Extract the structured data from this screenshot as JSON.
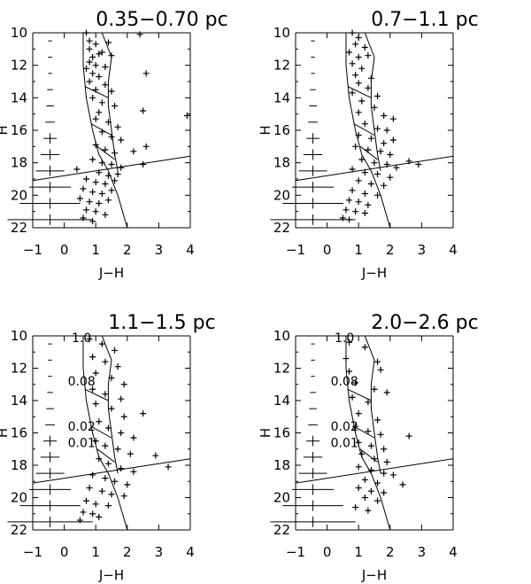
{
  "chart_data": [
    {
      "type": "scatter",
      "title": "0.35−0.70 pc",
      "xlabel": "J−H",
      "ylabel": "H",
      "xlim": [
        -1,
        4
      ],
      "ylim": [
        22,
        10
      ],
      "xticks": [
        "−1",
        "0",
        "1",
        "2",
        "3",
        "4"
      ],
      "yticks": [
        "10",
        "12",
        "14",
        "16",
        "18",
        "20",
        "22"
      ],
      "isochrone_labels": [],
      "points": [
        [
          0.7,
          10.0
        ],
        [
          2.4,
          10.1
        ],
        [
          0.8,
          10.5
        ],
        [
          1.0,
          10.7
        ],
        [
          1.4,
          10.6
        ],
        [
          0.8,
          11.0
        ],
        [
          1.1,
          11.3
        ],
        [
          0.9,
          11.5
        ],
        [
          1.2,
          11.2
        ],
        [
          1.5,
          11.4
        ],
        [
          0.8,
          11.8
        ],
        [
          1.0,
          12.0
        ],
        [
          0.7,
          12.2
        ],
        [
          1.3,
          12.1
        ],
        [
          0.9,
          12.5
        ],
        [
          1.1,
          12.7
        ],
        [
          2.6,
          12.5
        ],
        [
          0.8,
          13.0
        ],
        [
          1.3,
          13.2
        ],
        [
          1.0,
          13.5
        ],
        [
          1.5,
          13.6
        ],
        [
          0.9,
          14.0
        ],
        [
          1.2,
          14.3
        ],
        [
          1.6,
          14.5
        ],
        [
          1.1,
          14.9
        ],
        [
          2.5,
          14.8
        ],
        [
          3.9,
          15.1
        ],
        [
          1.0,
          15.3
        ],
        [
          1.4,
          15.5
        ],
        [
          1.7,
          15.8
        ],
        [
          1.2,
          16.1
        ],
        [
          1.5,
          16.4
        ],
        [
          1.8,
          16.6
        ],
        [
          2.6,
          17.0
        ],
        [
          1.0,
          16.9
        ],
        [
          1.3,
          17.2
        ],
        [
          1.6,
          17.4
        ],
        [
          2.2,
          17.3
        ],
        [
          0.9,
          17.8
        ],
        [
          1.2,
          18.0
        ],
        [
          1.5,
          18.1
        ],
        [
          1.8,
          18.3
        ],
        [
          2.5,
          18.1
        ],
        [
          0.4,
          18.4
        ],
        [
          1.1,
          18.6
        ],
        [
          1.4,
          18.8
        ],
        [
          1.7,
          18.7
        ],
        [
          0.7,
          19.0
        ],
        [
          1.0,
          19.2
        ],
        [
          1.3,
          19.3
        ],
        [
          1.6,
          19.1
        ],
        [
          0.6,
          19.6
        ],
        [
          0.9,
          19.8
        ],
        [
          1.2,
          19.9
        ],
        [
          1.5,
          19.7
        ],
        [
          0.5,
          20.2
        ],
        [
          0.8,
          20.4
        ],
        [
          1.1,
          20.5
        ],
        [
          1.4,
          20.3
        ],
        [
          0.7,
          20.9
        ],
        [
          1.0,
          21.0
        ],
        [
          1.3,
          21.2
        ],
        [
          0.6,
          21.4
        ],
        [
          0.9,
          21.6
        ]
      ],
      "error_bars_H": [
        10.5,
        11.5,
        12.5,
        13.5,
        14.5,
        15.5,
        16.5,
        17.5,
        18.5,
        19.5,
        20.5,
        21.5
      ],
      "error_bars_halfwidth": [
        0.02,
        0.02,
        0.02,
        0.03,
        0.04,
        0.05,
        0.07,
        0.1,
        0.15,
        0.22,
        0.32,
        0.45
      ]
    },
    {
      "type": "scatter",
      "title": "0.7−1.1 pc",
      "xlabel": "J−H",
      "ylabel": "H",
      "xlim": [
        -1,
        4
      ],
      "ylim": [
        22,
        10
      ],
      "xticks": [
        "−1",
        "0",
        "1",
        "2",
        "3",
        "4"
      ],
      "yticks": [
        "10",
        "12",
        "14",
        "16",
        "18",
        "20",
        "22"
      ],
      "isochrone_labels": [],
      "points": [
        [
          0.8,
          10.0
        ],
        [
          1.0,
          10.3
        ],
        [
          0.9,
          10.7
        ],
        [
          1.2,
          10.9
        ],
        [
          0.7,
          11.2
        ],
        [
          1.0,
          11.5
        ],
        [
          1.3,
          11.4
        ],
        [
          0.8,
          11.9
        ],
        [
          1.1,
          12.2
        ],
        [
          0.9,
          12.6
        ],
        [
          1.4,
          12.8
        ],
        [
          1.0,
          13.1
        ],
        [
          1.3,
          13.4
        ],
        [
          0.8,
          13.7
        ],
        [
          1.6,
          13.9
        ],
        [
          1.1,
          14.2
        ],
        [
          1.5,
          14.6
        ],
        [
          1.0,
          14.9
        ],
        [
          1.8,
          15.1
        ],
        [
          2.1,
          15.3
        ],
        [
          1.2,
          15.6
        ],
        [
          1.6,
          15.9
        ],
        [
          1.9,
          16.0
        ],
        [
          1.0,
          16.3
        ],
        [
          1.4,
          16.5
        ],
        [
          1.8,
          16.8
        ],
        [
          2.1,
          16.6
        ],
        [
          0.9,
          17.0
        ],
        [
          1.3,
          17.2
        ],
        [
          1.7,
          17.3
        ],
        [
          2.0,
          17.5
        ],
        [
          1.1,
          17.8
        ],
        [
          1.5,
          18.0
        ],
        [
          1.9,
          18.1
        ],
        [
          2.2,
          18.3
        ],
        [
          0.8,
          18.4
        ],
        [
          1.2,
          18.6
        ],
        [
          1.6,
          18.7
        ],
        [
          2.0,
          18.9
        ],
        [
          1.0,
          19.1
        ],
        [
          1.4,
          19.3
        ],
        [
          1.8,
          19.4
        ],
        [
          0.8,
          19.7
        ],
        [
          1.2,
          19.9
        ],
        [
          1.6,
          20.0
        ],
        [
          0.7,
          20.3
        ],
        [
          1.0,
          20.4
        ],
        [
          1.3,
          20.6
        ],
        [
          0.6,
          20.9
        ],
        [
          0.9,
          21.0
        ],
        [
          1.2,
          21.1
        ],
        [
          0.5,
          21.4
        ],
        [
          0.7,
          21.5
        ],
        [
          2.6,
          17.9
        ],
        [
          2.9,
          18.1
        ]
      ],
      "error_bars_H": [
        10.5,
        11.5,
        12.5,
        13.5,
        14.5,
        15.5,
        16.5,
        17.5,
        18.5,
        19.5,
        20.5,
        21.5
      ],
      "error_bars_halfwidth": [
        0.02,
        0.02,
        0.02,
        0.03,
        0.04,
        0.05,
        0.07,
        0.1,
        0.15,
        0.22,
        0.32,
        0.45
      ]
    },
    {
      "type": "scatter",
      "title": "1.1−1.5 pc",
      "xlabel": "J−H",
      "ylabel": "H",
      "xlim": [
        -1,
        4
      ],
      "ylim": [
        22,
        10
      ],
      "xticks": [
        "−1",
        "0",
        "1",
        "2",
        "3",
        "4"
      ],
      "yticks": [
        "10",
        "12",
        "14",
        "16",
        "18",
        "20",
        "22"
      ],
      "isochrone_labels": [
        "1.0",
        "0.08",
        "0.02",
        "0.01"
      ],
      "points": [
        [
          0.8,
          10.2
        ],
        [
          1.2,
          10.5
        ],
        [
          1.6,
          10.9
        ],
        [
          0.9,
          11.3
        ],
        [
          1.3,
          11.6
        ],
        [
          1.7,
          11.9
        ],
        [
          1.0,
          12.3
        ],
        [
          1.5,
          12.6
        ],
        [
          1.9,
          13.0
        ],
        [
          0.9,
          13.3
        ],
        [
          1.3,
          13.6
        ],
        [
          1.8,
          13.9
        ],
        [
          2.5,
          14.8
        ],
        [
          1.0,
          14.2
        ],
        [
          1.5,
          14.5
        ],
        [
          1.9,
          15.0
        ],
        [
          1.1,
          15.3
        ],
        [
          1.4,
          15.7
        ],
        [
          1.8,
          16.0
        ],
        [
          2.2,
          16.3
        ],
        [
          1.0,
          16.5
        ],
        [
          1.3,
          16.8
        ],
        [
          1.7,
          17.0
        ],
        [
          2.1,
          17.3
        ],
        [
          3.3,
          18.1
        ],
        [
          2.9,
          17.4
        ],
        [
          1.1,
          17.6
        ],
        [
          1.4,
          17.9
        ],
        [
          1.8,
          18.2
        ],
        [
          2.2,
          18.4
        ],
        [
          0.9,
          18.6
        ],
        [
          1.3,
          18.8
        ],
        [
          1.6,
          19.0
        ],
        [
          2.0,
          19.2
        ],
        [
          0.8,
          19.4
        ],
        [
          1.2,
          19.6
        ],
        [
          1.5,
          19.8
        ],
        [
          1.9,
          19.9
        ],
        [
          0.7,
          20.2
        ],
        [
          1.0,
          20.4
        ],
        [
          1.4,
          20.5
        ],
        [
          0.6,
          20.9
        ],
        [
          0.9,
          21.0
        ],
        [
          1.1,
          21.2
        ],
        [
          0.5,
          21.4
        ]
      ],
      "error_bars_H": [
        10.5,
        11.5,
        12.5,
        13.5,
        14.5,
        15.5,
        16.5,
        17.5,
        18.5,
        19.5,
        20.5,
        21.5
      ],
      "error_bars_halfwidth": [
        0.02,
        0.02,
        0.02,
        0.03,
        0.04,
        0.05,
        0.07,
        0.1,
        0.15,
        0.22,
        0.32,
        0.45
      ]
    },
    {
      "type": "scatter",
      "title": "2.0−2.6 pc",
      "xlabel": "J−H",
      "ylabel": "H",
      "xlim": [
        -1,
        4
      ],
      "ylim": [
        22,
        10
      ],
      "xticks": [
        "−1",
        "0",
        "1",
        "2",
        "3",
        "4"
      ],
      "yticks": [
        "10",
        "12",
        "14",
        "16",
        "18",
        "20",
        "22"
      ],
      "isochrone_labels": [
        "1.0",
        "0.08",
        "0.02",
        "0.01"
      ],
      "points": [
        [
          0.7,
          10.4
        ],
        [
          1.2,
          10.7
        ],
        [
          0.6,
          11.4
        ],
        [
          1.6,
          11.6
        ],
        [
          0.7,
          12.2
        ],
        [
          1.7,
          12.1
        ],
        [
          0.9,
          12.9
        ],
        [
          1.5,
          13.3
        ],
        [
          0.8,
          13.8
        ],
        [
          1.3,
          14.1
        ],
        [
          1.9,
          13.5
        ],
        [
          1.0,
          14.8
        ],
        [
          1.6,
          15.2
        ],
        [
          0.9,
          15.6
        ],
        [
          1.3,
          15.9
        ],
        [
          1.7,
          16.1
        ],
        [
          1.0,
          16.6
        ],
        [
          1.4,
          16.8
        ],
        [
          1.8,
          17.0
        ],
        [
          1.1,
          17.3
        ],
        [
          1.5,
          17.6
        ],
        [
          1.9,
          17.8
        ],
        [
          1.0,
          18.1
        ],
        [
          1.4,
          18.3
        ],
        [
          1.8,
          18.5
        ],
        [
          1.2,
          18.9
        ],
        [
          1.6,
          19.1
        ],
        [
          1.0,
          19.4
        ],
        [
          1.4,
          19.6
        ],
        [
          1.8,
          19.7
        ],
        [
          1.2,
          20.0
        ],
        [
          1.6,
          20.2
        ],
        [
          0.9,
          20.6
        ],
        [
          1.3,
          20.8
        ],
        [
          2.6,
          16.2
        ],
        [
          2.1,
          18.6
        ],
        [
          2.4,
          19.2
        ]
      ],
      "error_bars_H": [
        10.5,
        11.5,
        12.5,
        13.5,
        14.5,
        15.5,
        16.5,
        17.5,
        18.5,
        19.5,
        20.5,
        21.5
      ],
      "error_bars_halfwidth": [
        0.02,
        0.02,
        0.02,
        0.03,
        0.04,
        0.05,
        0.07,
        0.1,
        0.15,
        0.22,
        0.32,
        0.45
      ]
    }
  ],
  "isochrones": {
    "left": [
      [
        0.6,
        10.0
      ],
      [
        0.6,
        12.0
      ],
      [
        0.7,
        14.0
      ],
      [
        0.9,
        16.0
      ],
      [
        1.1,
        17.5
      ],
      [
        1.4,
        18.5
      ],
      [
        1.7,
        20.0
      ],
      [
        2.0,
        22.0
      ]
    ],
    "right": [
      [
        1.2,
        10.0
      ],
      [
        1.5,
        11.5
      ],
      [
        1.4,
        13.0
      ],
      [
        1.4,
        14.5
      ],
      [
        1.5,
        16.0
      ],
      [
        1.6,
        17.5
      ],
      [
        1.7,
        18.5
      ]
    ],
    "rungs": [
      [
        [
          0.6,
          10.0
        ],
        [
          1.2,
          10.0
        ]
      ],
      [
        [
          0.65,
          13.3
        ],
        [
          1.4,
          14.0
        ]
      ],
      [
        [
          0.85,
          15.6
        ],
        [
          1.5,
          16.3
        ]
      ],
      [
        [
          1.05,
          17.0
        ],
        [
          1.6,
          17.8
        ]
      ]
    ]
  },
  "completeness_line": [
    [
      -1,
      19.1
    ],
    [
      4,
      17.6
    ]
  ]
}
